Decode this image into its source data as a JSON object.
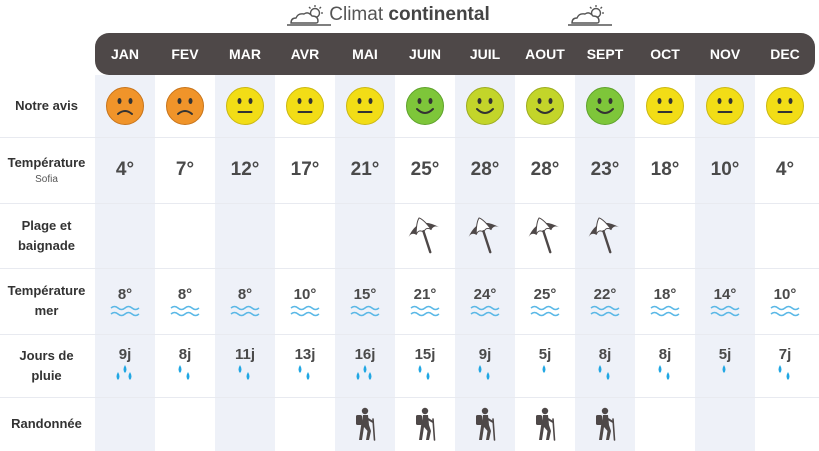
{
  "title": {
    "prefix": "Climat ",
    "emphasis": "continental"
  },
  "months": [
    "JAN",
    "FEV",
    "MAR",
    "AVR",
    "MAI",
    "JUIN",
    "JUIL",
    "AOUT",
    "SEPT",
    "OCT",
    "NOV",
    "DEC"
  ],
  "row_labels": {
    "avis": "Notre avis",
    "temperature": "Température",
    "temperature_sub": "Sofia",
    "plage_line1": "Plage et",
    "plage_line2": "baignade",
    "mer_line1": "Température",
    "mer_line2": "mer",
    "pluie_line1": "Jours de",
    "pluie_line2": "pluie",
    "randonnee": "Randonnée"
  },
  "ratings": [
    "bad",
    "bad",
    "neutral",
    "neutral",
    "neutral",
    "good",
    "fair",
    "fair",
    "good",
    "neutral",
    "neutral",
    "neutral"
  ],
  "rating_colors": {
    "bad": "#f0942a",
    "neutral": "#f2dd16",
    "fair": "#c3d52a",
    "good": "#7ec63a"
  },
  "temperatures": [
    "4°",
    "7°",
    "12°",
    "17°",
    "21°",
    "25°",
    "28°",
    "28°",
    "23°",
    "18°",
    "10°",
    "4°"
  ],
  "beach": [
    false,
    false,
    false,
    false,
    false,
    true,
    true,
    true,
    true,
    false,
    false,
    false
  ],
  "sea_temperatures": [
    "8°",
    "8°",
    "8°",
    "10°",
    "15°",
    "21°",
    "24°",
    "25°",
    "22°",
    "18°",
    "14°",
    "10°"
  ],
  "rain_days": [
    "9j",
    "8j",
    "11j",
    "13j",
    "16j",
    "15j",
    "9j",
    "5j",
    "8j",
    "8j",
    "5j",
    "7j"
  ],
  "rain_drops": [
    3,
    2,
    2,
    2,
    3,
    2,
    2,
    1,
    2,
    2,
    1,
    2
  ],
  "hiking": [
    false,
    false,
    false,
    false,
    true,
    true,
    true,
    true,
    true,
    false,
    false,
    false
  ],
  "icons": {
    "cloud": "sun-cloud-icon",
    "umbrella": "beach-umbrella-icon",
    "waves": "waves-icon",
    "drop": "rain-drop-icon",
    "hiker": "hiker-icon"
  },
  "colors": {
    "header": "#4e4848",
    "column_shade": "#eef1f8",
    "wave": "#5bb8e6",
    "drop": "#21a7e3",
    "icon_dark": "#4e4848"
  }
}
